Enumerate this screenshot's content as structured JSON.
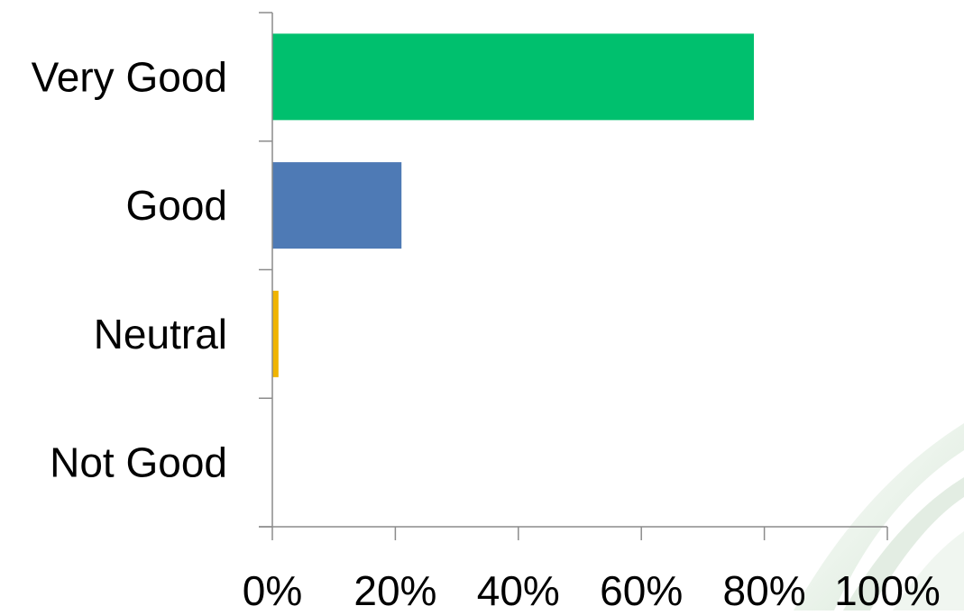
{
  "chart_data": {
    "type": "bar",
    "orientation": "horizontal",
    "categories": [
      "Very Good",
      "Good",
      "Neutral",
      "Not Good"
    ],
    "values": [
      78.3,
      21.0,
      1.0,
      0.0
    ],
    "colors": [
      "#00c06e",
      "#4e7ab5",
      "#f0b400",
      "#c0504d"
    ],
    "xlim": [
      0,
      100
    ],
    "x_ticks": [
      0,
      20,
      40,
      60,
      80,
      100
    ],
    "x_tick_labels": [
      "0%",
      "20%",
      "40%",
      "60%",
      "80%",
      "100%"
    ],
    "title": "",
    "xlabel": "",
    "ylabel": "",
    "grid": false,
    "legend": false
  }
}
